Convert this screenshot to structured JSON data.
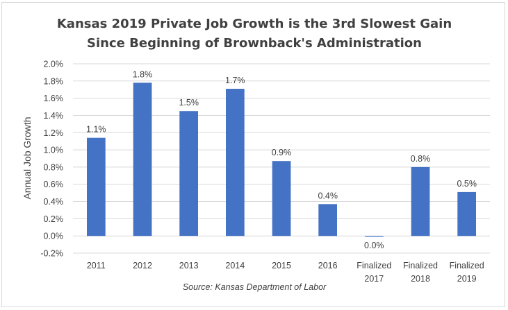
{
  "chart_data": {
    "type": "bar",
    "title": [
      "Kansas 2019 Private Job Growth is the 3rd Slowest Gain",
      "Since Beginning of Brownback's Administration"
    ],
    "ylabel": "Annual Job Growth",
    "xlabel": "",
    "source": "Source: Kansas Department of Labor",
    "categories": [
      [
        "2011"
      ],
      [
        "2012"
      ],
      [
        "2013"
      ],
      [
        "2014"
      ],
      [
        "2015"
      ],
      [
        "2016"
      ],
      [
        "Finalized",
        "2017"
      ],
      [
        "Finalized",
        "2018"
      ],
      [
        "Finalized",
        "2019"
      ]
    ],
    "values": [
      0.0114,
      0.0178,
      0.0145,
      0.0171,
      0.0087,
      0.0037,
      -0.0001,
      0.008,
      0.0051
    ],
    "data_labels": [
      "1.1%",
      "1.8%",
      "1.5%",
      "1.7%",
      "0.9%",
      "0.4%",
      "0.0%",
      "0.8%",
      "0.5%"
    ],
    "ylim": [
      -0.002,
      0.02
    ],
    "yticks": [
      -0.002,
      0.0,
      0.002,
      0.004,
      0.006,
      0.008,
      0.01,
      0.012,
      0.014,
      0.016,
      0.018,
      0.02
    ],
    "ytick_labels": [
      "-0.2%",
      "0.0%",
      "0.2%",
      "0.4%",
      "0.6%",
      "0.8%",
      "1.0%",
      "1.2%",
      "1.4%",
      "1.6%",
      "1.8%",
      "2.0%"
    ],
    "grid": true,
    "bar_color": "#4472c4",
    "grid_color": "#d9d9d9"
  }
}
